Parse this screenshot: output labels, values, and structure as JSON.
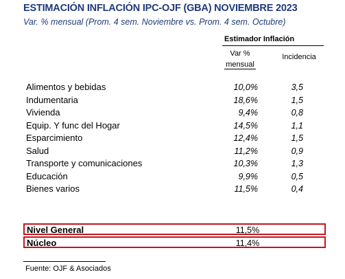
{
  "title": "ESTIMACIÓN INFLACIÓN IPC-OJF (GBA) NOVIEMBRE 2023",
  "subtitle": "Var. % mensual (Prom. 4 sem. Noviembre vs. Prom. 4 sem. Octubre)",
  "table": {
    "group_header": "Estimador Inflación",
    "col_var_line1": "Var %",
    "col_var_line2": "mensual",
    "col_incidencia": "Incidencia",
    "rows": [
      {
        "label": "Alimentos y bebidas",
        "var": "10,0%",
        "inc": "3,5"
      },
      {
        "label": "Indumentaria",
        "var": "18,6%",
        "inc": "1,5"
      },
      {
        "label": "Vivienda",
        "var": "9,4%",
        "inc": "0,8"
      },
      {
        "label": "Equip. Y func del Hogar",
        "var": "14,5%",
        "inc": "1,1"
      },
      {
        "label": "Esparcimiento",
        "var": "12,4%",
        "inc": "1,5"
      },
      {
        "label": "Salud",
        "var": "11,2%",
        "inc": "0,9"
      },
      {
        "label": "Transporte y comunicaciones",
        "var": "10,3%",
        "inc": "1,3"
      },
      {
        "label": "Educación",
        "var": "9,9%",
        "inc": "0,5"
      },
      {
        "label": "Bienes varios",
        "var": "11,5%",
        "inc": "0,4"
      }
    ],
    "summary": [
      {
        "label": "Nivel General",
        "value": "11,5%"
      },
      {
        "label": "Núcleo",
        "value": "11,4%"
      }
    ]
  },
  "footer": "Fuente: OJF & Asociados",
  "colors": {
    "title": "#1f3a78",
    "highlight_border": "#c4161c"
  }
}
